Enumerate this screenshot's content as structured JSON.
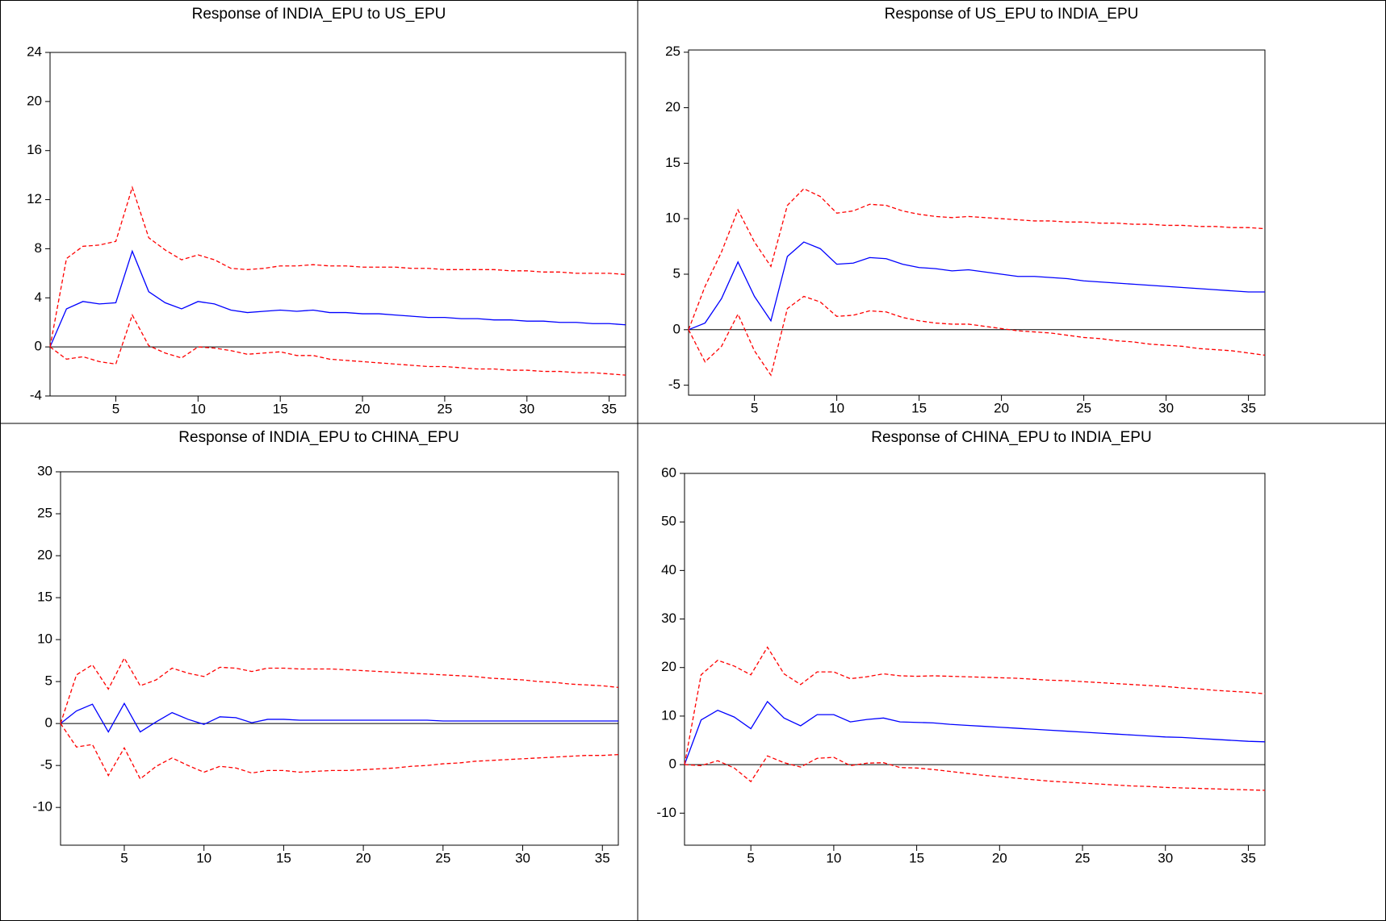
{
  "chart_data": [
    {
      "type": "line",
      "title": "Response of INDIA_EPU to US_EPU",
      "x": [
        1,
        2,
        3,
        4,
        5,
        6,
        7,
        8,
        9,
        10,
        11,
        12,
        13,
        14,
        15,
        16,
        17,
        18,
        19,
        20,
        21,
        22,
        23,
        24,
        25,
        26,
        27,
        28,
        29,
        30,
        31,
        32,
        33,
        34,
        35,
        36
      ],
      "xlim": [
        1,
        36
      ],
      "xticks": [
        5,
        10,
        15,
        20,
        25,
        30,
        35
      ],
      "ylim": [
        -4,
        24
      ],
      "yticks": [
        -4,
        0,
        4,
        8,
        12,
        16,
        20,
        24
      ],
      "zero_line": true,
      "series": [
        {
          "color": "#0000ff",
          "dash": false,
          "values": [
            0,
            3.1,
            3.7,
            3.5,
            3.6,
            7.8,
            4.5,
            3.6,
            3.1,
            3.7,
            3.5,
            3.0,
            2.8,
            2.9,
            3.0,
            2.9,
            3.0,
            2.8,
            2.8,
            2.7,
            2.7,
            2.6,
            2.5,
            2.4,
            2.4,
            2.3,
            2.3,
            2.2,
            2.2,
            2.1,
            2.1,
            2.0,
            2.0,
            1.9,
            1.9,
            1.8
          ]
        },
        {
          "color": "#ff0000",
          "dash": true,
          "values": [
            0,
            7.2,
            8.2,
            8.3,
            8.6,
            13.0,
            8.9,
            7.9,
            7.1,
            7.5,
            7.1,
            6.4,
            6.3,
            6.4,
            6.6,
            6.6,
            6.7,
            6.6,
            6.6,
            6.5,
            6.5,
            6.5,
            6.4,
            6.4,
            6.3,
            6.3,
            6.3,
            6.3,
            6.2,
            6.2,
            6.1,
            6.1,
            6.0,
            6.0,
            6.0,
            5.9
          ]
        },
        {
          "color": "#ff0000",
          "dash": true,
          "values": [
            0,
            -1.0,
            -0.8,
            -1.2,
            -1.4,
            2.6,
            0.1,
            -0.5,
            -0.9,
            0.0,
            -0.1,
            -0.3,
            -0.6,
            -0.5,
            -0.4,
            -0.7,
            -0.7,
            -1.0,
            -1.1,
            -1.2,
            -1.3,
            -1.4,
            -1.5,
            -1.6,
            -1.6,
            -1.7,
            -1.8,
            -1.8,
            -1.9,
            -1.9,
            -2.0,
            -2.0,
            -2.1,
            -2.1,
            -2.2,
            -2.3
          ]
        }
      ]
    },
    {
      "type": "line",
      "title": "Response of US_EPU to INDIA_EPU",
      "x": [
        1,
        2,
        3,
        4,
        5,
        6,
        7,
        8,
        9,
        10,
        11,
        12,
        13,
        14,
        15,
        16,
        17,
        18,
        19,
        20,
        21,
        22,
        23,
        24,
        25,
        26,
        27,
        28,
        29,
        30,
        31,
        32,
        33,
        34,
        35,
        36
      ],
      "xlim": [
        1,
        36
      ],
      "xticks": [
        5,
        10,
        15,
        20,
        25,
        30,
        35
      ],
      "ylim": [
        -5.9,
        25.2
      ],
      "yticks": [
        -5,
        0,
        5,
        10,
        15,
        20,
        25
      ],
      "zero_line": true,
      "series": [
        {
          "color": "#0000ff",
          "dash": false,
          "values": [
            0,
            0.6,
            2.8,
            6.1,
            3.0,
            0.8,
            6.6,
            7.9,
            7.3,
            5.9,
            6.0,
            6.5,
            6.4,
            5.9,
            5.6,
            5.5,
            5.3,
            5.4,
            5.2,
            5.0,
            4.8,
            4.8,
            4.7,
            4.6,
            4.4,
            4.3,
            4.2,
            4.1,
            4.0,
            3.9,
            3.8,
            3.7,
            3.6,
            3.5,
            3.4,
            3.4
          ]
        },
        {
          "color": "#ff0000",
          "dash": true,
          "values": [
            0,
            3.9,
            7.0,
            10.8,
            7.9,
            5.7,
            11.2,
            12.7,
            12.0,
            10.5,
            10.7,
            11.3,
            11.2,
            10.7,
            10.4,
            10.2,
            10.1,
            10.2,
            10.1,
            10.0,
            9.9,
            9.8,
            9.8,
            9.7,
            9.7,
            9.6,
            9.6,
            9.5,
            9.5,
            9.4,
            9.4,
            9.3,
            9.3,
            9.2,
            9.2,
            9.1
          ]
        },
        {
          "color": "#ff0000",
          "dash": true,
          "values": [
            0,
            -2.9,
            -1.5,
            1.4,
            -1.9,
            -4.1,
            1.9,
            3.0,
            2.5,
            1.2,
            1.3,
            1.7,
            1.6,
            1.1,
            0.8,
            0.6,
            0.5,
            0.5,
            0.3,
            0.1,
            -0.1,
            -0.2,
            -0.3,
            -0.5,
            -0.7,
            -0.8,
            -1.0,
            -1.1,
            -1.3,
            -1.4,
            -1.5,
            -1.7,
            -1.8,
            -1.9,
            -2.1,
            -2.3
          ]
        }
      ]
    },
    {
      "type": "line",
      "title": "Response of INDIA_EPU to CHINA_EPU",
      "x": [
        1,
        2,
        3,
        4,
        5,
        6,
        7,
        8,
        9,
        10,
        11,
        12,
        13,
        14,
        15,
        16,
        17,
        18,
        19,
        20,
        21,
        22,
        23,
        24,
        25,
        26,
        27,
        28,
        29,
        30,
        31,
        32,
        33,
        34,
        35,
        36
      ],
      "xlim": [
        1,
        36
      ],
      "xticks": [
        5,
        10,
        15,
        20,
        25,
        30,
        35
      ],
      "ylim": [
        -14.5,
        30
      ],
      "yticks": [
        -10,
        -5,
        0,
        5,
        10,
        15,
        20,
        25,
        30
      ],
      "zero_line": true,
      "series": [
        {
          "color": "#0000ff",
          "dash": false,
          "values": [
            0,
            1.5,
            2.3,
            -1.0,
            2.4,
            -1.0,
            0.2,
            1.3,
            0.5,
            -0.1,
            0.8,
            0.7,
            0.1,
            0.5,
            0.5,
            0.4,
            0.4,
            0.4,
            0.4,
            0.4,
            0.4,
            0.4,
            0.4,
            0.4,
            0.3,
            0.3,
            0.3,
            0.3,
            0.3,
            0.3,
            0.3,
            0.3,
            0.3,
            0.3,
            0.3,
            0.3
          ]
        },
        {
          "color": "#ff0000",
          "dash": true,
          "values": [
            0,
            5.8,
            7.0,
            4.1,
            7.8,
            4.5,
            5.2,
            6.6,
            6.0,
            5.6,
            6.7,
            6.6,
            6.2,
            6.6,
            6.6,
            6.5,
            6.5,
            6.5,
            6.4,
            6.3,
            6.2,
            6.1,
            6.0,
            5.9,
            5.8,
            5.7,
            5.6,
            5.4,
            5.3,
            5.2,
            5.0,
            4.9,
            4.7,
            4.6,
            4.5,
            4.3
          ]
        },
        {
          "color": "#ff0000",
          "dash": true,
          "values": [
            0,
            -2.8,
            -2.5,
            -6.2,
            -2.9,
            -6.6,
            -5.1,
            -4.1,
            -5.0,
            -5.8,
            -5.1,
            -5.3,
            -5.9,
            -5.6,
            -5.6,
            -5.8,
            -5.7,
            -5.6,
            -5.6,
            -5.5,
            -5.4,
            -5.3,
            -5.1,
            -5.0,
            -4.8,
            -4.7,
            -4.5,
            -4.4,
            -4.3,
            -4.2,
            -4.1,
            -4.0,
            -3.9,
            -3.8,
            -3.8,
            -3.7
          ]
        }
      ]
    },
    {
      "type": "line",
      "title": "Response of CHINA_EPU to INDIA_EPU",
      "x": [
        1,
        2,
        3,
        4,
        5,
        6,
        7,
        8,
        9,
        10,
        11,
        12,
        13,
        14,
        15,
        16,
        17,
        18,
        19,
        20,
        21,
        22,
        23,
        24,
        25,
        26,
        27,
        28,
        29,
        30,
        31,
        32,
        33,
        34,
        35,
        36
      ],
      "xlim": [
        1,
        36
      ],
      "xticks": [
        5,
        10,
        15,
        20,
        25,
        30,
        35
      ],
      "ylim": [
        -16.6,
        60
      ],
      "yticks": [
        -10,
        0,
        10,
        20,
        30,
        40,
        50,
        60
      ],
      "zero_line": true,
      "series": [
        {
          "color": "#0000ff",
          "dash": false,
          "values": [
            0,
            9.2,
            11.2,
            9.8,
            7.4,
            13.0,
            9.6,
            8.0,
            10.3,
            10.3,
            8.8,
            9.3,
            9.6,
            8.8,
            8.7,
            8.6,
            8.3,
            8.1,
            7.9,
            7.7,
            7.5,
            7.3,
            7.1,
            6.9,
            6.7,
            6.5,
            6.3,
            6.1,
            5.9,
            5.7,
            5.6,
            5.4,
            5.2,
            5.0,
            4.8,
            4.7
          ]
        },
        {
          "color": "#ff0000",
          "dash": true,
          "values": [
            0,
            18.5,
            21.5,
            20.3,
            18.5,
            24.2,
            18.7,
            16.5,
            19.1,
            19.1,
            17.7,
            18.1,
            18.7,
            18.3,
            18.2,
            18.3,
            18.2,
            18.1,
            18.0,
            17.9,
            17.8,
            17.6,
            17.4,
            17.3,
            17.1,
            16.9,
            16.7,
            16.5,
            16.3,
            16.1,
            15.8,
            15.6,
            15.3,
            15.1,
            14.9,
            14.6
          ]
        },
        {
          "color": "#ff0000",
          "dash": true,
          "values": [
            0,
            -0.2,
            0.8,
            -0.7,
            -3.5,
            1.8,
            0.4,
            -0.5,
            1.3,
            1.5,
            -0.2,
            0.3,
            0.4,
            -0.6,
            -0.7,
            -1.0,
            -1.4,
            -1.8,
            -2.2,
            -2.5,
            -2.8,
            -3.1,
            -3.4,
            -3.6,
            -3.8,
            -4.0,
            -4.2,
            -4.4,
            -4.5,
            -4.7,
            -4.8,
            -4.9,
            -5.0,
            -5.1,
            -5.2,
            -5.3
          ]
        }
      ]
    }
  ]
}
